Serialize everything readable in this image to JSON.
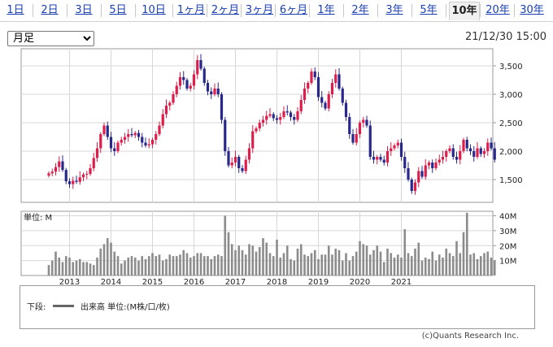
{
  "tabs": [
    "1日",
    "2日",
    "3日",
    "5日",
    "10日",
    "1ヶ月",
    "2ヶ月",
    "3ヶ月",
    "6ヶ月",
    "1年",
    "2年",
    "3年",
    "5年",
    "10年",
    "20年",
    "30年"
  ],
  "active_tab": "10年",
  "period_select": {
    "value": "月足",
    "options": [
      "月足"
    ]
  },
  "timestamp": "21/12/30 15:00",
  "volume_panel_label": "単位: M",
  "legend": {
    "prefix": "下段:",
    "text": "出来高 単位:(M株/口/枚)"
  },
  "copyright": "(c)Quants Research Inc.",
  "colors": {
    "up": "#dd1e4a",
    "down": "#28288c",
    "volume": "#8c8c8c",
    "grid": "#d7d7d7"
  },
  "chart_data": {
    "type": "candlestick",
    "interval": "monthly",
    "x_tick_labels": [
      "2013",
      "2014",
      "2015",
      "2016",
      "2017",
      "2018",
      "2019",
      "2020",
      "2021"
    ],
    "price_axis": {
      "ticks": [
        1500,
        2000,
        2500,
        3000,
        3500
      ],
      "tick_labels": [
        "1,500",
        "2,000",
        "2,500",
        "3,000",
        "3,500"
      ],
      "range": [
        1100,
        3800
      ]
    },
    "volume_axis": {
      "ticks": [
        10,
        20,
        30,
        40
      ],
      "tick_labels": [
        "10M",
        "20M",
        "30M",
        "40M"
      ],
      "range": [
        0,
        43
      ]
    },
    "close": [
      1610,
      1640,
      1720,
      1820,
      1670,
      1470,
      1420,
      1480,
      1460,
      1540,
      1590,
      1600,
      1700,
      1880,
      2050,
      2300,
      2450,
      2250,
      2050,
      2000,
      2150,
      2200,
      2250,
      2300,
      2280,
      2320,
      2250,
      2150,
      2100,
      2120,
      2200,
      2300,
      2450,
      2650,
      2800,
      2850,
      3000,
      3150,
      3300,
      3250,
      3100,
      3150,
      3350,
      3600,
      3450,
      3200,
      3050,
      3000,
      3100,
      3000,
      2550,
      2000,
      1750,
      1800,
      1900,
      1700,
      1650,
      1850,
      2050,
      2350,
      2400,
      2500,
      2550,
      2620,
      2650,
      2580,
      2550,
      2600,
      2700,
      2680,
      2600,
      2550,
      2700,
      2900,
      3100,
      3200,
      3400,
      3300,
      2950,
      2850,
      2750,
      3000,
      3200,
      3350,
      3100,
      2850,
      2600,
      2300,
      2150,
      2300,
      2500,
      2550,
      2450,
      1900,
      1850,
      1900,
      1850,
      1800,
      2000,
      2050,
      2100,
      2150,
      1900,
      1700,
      1500,
      1300,
      1450,
      1650,
      1550,
      1750,
      1800,
      1700,
      1800,
      1850,
      1900,
      2000,
      2050,
      1900,
      1850,
      2000,
      2200,
      2050,
      2000,
      1900,
      2050,
      1950,
      2000,
      2150,
      2050,
      1850
    ],
    "volume": [
      7,
      10,
      16,
      12,
      9,
      13,
      12,
      9,
      10,
      11,
      9,
      9,
      8,
      7,
      12,
      18,
      21,
      25,
      22,
      16,
      13,
      8,
      10,
      12,
      13,
      12,
      10,
      13,
      11,
      13,
      15,
      13,
      14,
      10,
      11,
      14,
      13,
      13,
      14,
      17,
      15,
      12,
      13,
      15,
      15,
      13,
      13,
      11,
      13,
      14,
      13,
      40,
      29,
      21,
      17,
      20,
      17,
      14,
      21,
      20,
      16,
      19,
      25,
      22,
      15,
      13,
      24,
      12,
      15,
      20,
      11,
      10,
      18,
      21,
      14,
      13,
      15,
      17,
      11,
      14,
      14,
      20,
      14,
      18,
      17,
      10,
      15,
      10,
      13,
      16,
      23,
      21,
      20,
      14,
      17,
      20,
      16,
      9,
      18,
      15,
      12,
      14,
      12,
      31,
      15,
      13,
      18,
      22,
      10,
      12,
      11,
      16,
      10,
      14,
      12,
      18,
      15,
      13,
      23,
      15,
      29,
      42,
      14,
      15,
      11,
      13,
      15,
      16,
      12,
      10
    ]
  }
}
